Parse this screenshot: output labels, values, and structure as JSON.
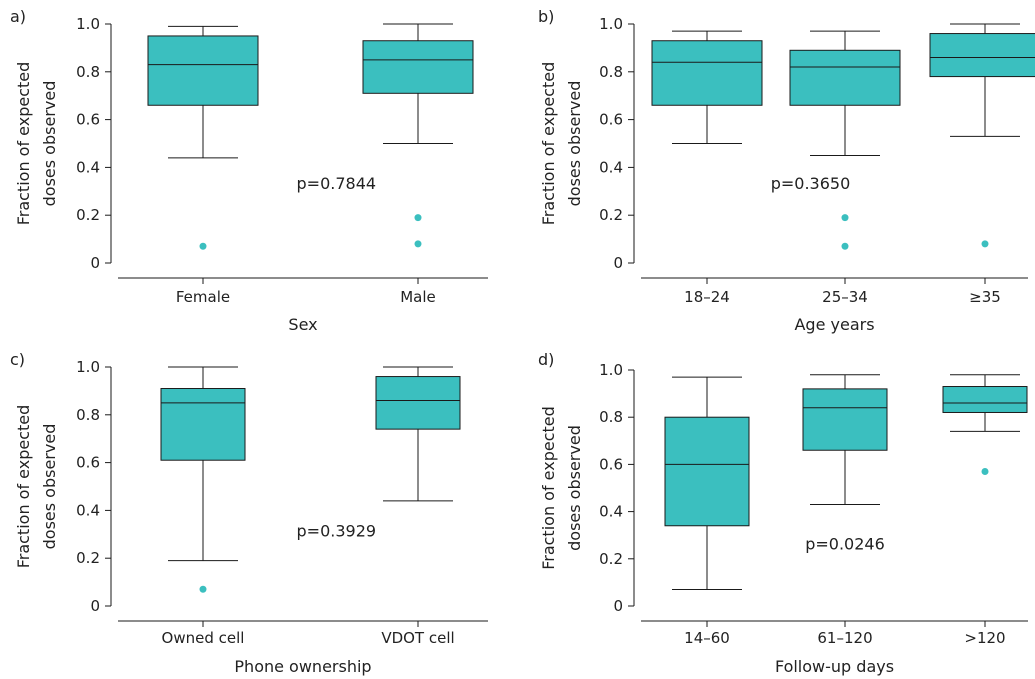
{
  "colors": {
    "box_fill": "#3bbfbf",
    "outlier": "#3bbfbf",
    "line": "#1a1a1a"
  },
  "chart_data": [
    {
      "type": "box",
      "panel_label": "a)",
      "xlabel": "Sex",
      "ylabel_lines": [
        "Fraction of expected",
        "doses observed"
      ],
      "ylim": [
        0,
        1.0
      ],
      "yticks": [
        "0",
        "0.2",
        "0.4",
        "0.6",
        "0.8",
        "1.0"
      ],
      "annotation": "p=0.7844",
      "annotation_pos": {
        "cat": 0.62,
        "y": 0.31
      },
      "categories": [
        "Female",
        "Male"
      ],
      "boxes": [
        {
          "whisker_low": 0.44,
          "q1": 0.66,
          "median": 0.83,
          "q3": 0.95,
          "whisker_high": 0.99,
          "outliers": [
            0.07
          ]
        },
        {
          "whisker_low": 0.5,
          "q1": 0.71,
          "median": 0.85,
          "q3": 0.93,
          "whisker_high": 1.0,
          "outliers": [
            0.19,
            0.08
          ]
        }
      ]
    },
    {
      "type": "box",
      "panel_label": "b)",
      "xlabel": "Age years",
      "ylabel_lines": [
        "Fraction of expected",
        "doses observed"
      ],
      "ylim": [
        0,
        1.0
      ],
      "yticks": [
        "0",
        "0.2",
        "0.4",
        "0.6",
        "0.8",
        "1.0"
      ],
      "annotation": "p=0.3650",
      "annotation_pos": {
        "cat": 0.75,
        "y": 0.31
      },
      "categories": [
        "18–24",
        "25–34",
        "≥35"
      ],
      "boxes": [
        {
          "whisker_low": 0.5,
          "q1": 0.66,
          "median": 0.84,
          "q3": 0.93,
          "whisker_high": 0.97,
          "outliers": []
        },
        {
          "whisker_low": 0.45,
          "q1": 0.66,
          "median": 0.82,
          "q3": 0.89,
          "whisker_high": 0.97,
          "outliers": [
            0.19,
            0.07
          ]
        },
        {
          "whisker_low": 0.53,
          "q1": 0.78,
          "median": 0.86,
          "q3": 0.96,
          "whisker_high": 1.0,
          "outliers": [
            0.08
          ]
        }
      ]
    },
    {
      "type": "box",
      "panel_label": "c)",
      "xlabel": "Phone ownership",
      "ylabel_lines": [
        "Fraction of expected",
        "doses observed"
      ],
      "ylim": [
        0,
        1.0
      ],
      "yticks": [
        "0",
        "0.2",
        "0.4",
        "0.6",
        "0.8",
        "1.0"
      ],
      "annotation": "p=0.3929",
      "annotation_pos": {
        "cat": 0.62,
        "y": 0.29
      },
      "categories": [
        "Owned cell",
        "VDOT cell"
      ],
      "boxes": [
        {
          "whisker_low": 0.19,
          "q1": 0.61,
          "median": 0.85,
          "q3": 0.91,
          "whisker_high": 1.0,
          "outliers": [
            0.07
          ]
        },
        {
          "whisker_low": 0.44,
          "q1": 0.74,
          "median": 0.86,
          "q3": 0.96,
          "whisker_high": 1.0,
          "outliers": []
        }
      ]
    },
    {
      "type": "box",
      "panel_label": "d)",
      "xlabel": "Follow-up days",
      "ylabel_lines": [
        "Fraction of expected",
        "doses observed"
      ],
      "ylim": [
        0,
        1.0
      ],
      "yticks": [
        "0",
        "0.2",
        "0.4",
        "0.6",
        "0.8",
        "1.0"
      ],
      "annotation": "p=0.0246",
      "annotation_pos": {
        "cat": 1.0,
        "y": 0.24
      },
      "categories": [
        "14–60",
        "61–120",
        ">120"
      ],
      "boxes": [
        {
          "whisker_low": 0.07,
          "q1": 0.34,
          "median": 0.6,
          "q3": 0.8,
          "whisker_high": 0.97,
          "outliers": []
        },
        {
          "whisker_low": 0.43,
          "q1": 0.66,
          "median": 0.84,
          "q3": 0.92,
          "whisker_high": 0.98,
          "outliers": []
        },
        {
          "whisker_low": 0.74,
          "q1": 0.82,
          "median": 0.86,
          "q3": 0.93,
          "whisker_high": 0.98,
          "outliers": [
            0.57
          ]
        }
      ]
    }
  ]
}
